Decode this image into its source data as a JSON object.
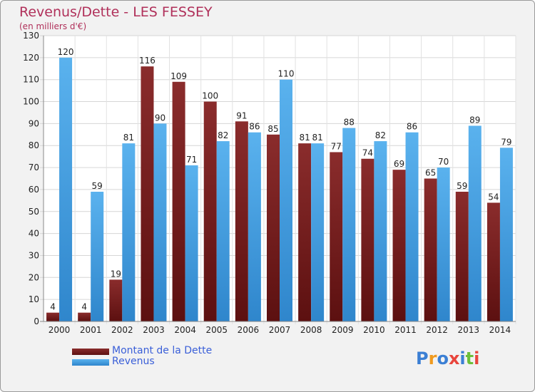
{
  "title": "Revenus/Dette - LES FESSEY",
  "subtitle": "(en milliers d'€)",
  "logo_text": "Proxiti",
  "colors": {
    "debt": "#7a2424",
    "revenue": "#4ea6e4",
    "title": "#b0305a",
    "legend_text": "#3a5fd8"
  },
  "chart_data": {
    "type": "bar",
    "title": "Revenus/Dette - LES FESSEY",
    "ylabel": "(en milliers d'€)",
    "ylim": [
      0,
      130
    ],
    "yticks": [
      0,
      10,
      20,
      30,
      40,
      50,
      60,
      70,
      80,
      90,
      100,
      110,
      120,
      130
    ],
    "grid": true,
    "legend_position": "bottom-left",
    "categories": [
      "2000",
      "2001",
      "2002",
      "2003",
      "2004",
      "2005",
      "2006",
      "2007",
      "2008",
      "2009",
      "2010",
      "2011",
      "2012",
      "2013",
      "2014"
    ],
    "series": [
      {
        "name": "Montant de la Dette",
        "color": "#7a2424",
        "values": [
          4,
          4,
          19,
          116,
          109,
          100,
          91,
          85,
          81,
          77,
          74,
          69,
          65,
          59,
          54
        ]
      },
      {
        "name": "Revenus",
        "color": "#4ea6e4",
        "values": [
          120,
          59,
          81,
          90,
          71,
          82,
          86,
          110,
          81,
          88,
          82,
          86,
          70,
          89,
          79
        ]
      }
    ]
  }
}
